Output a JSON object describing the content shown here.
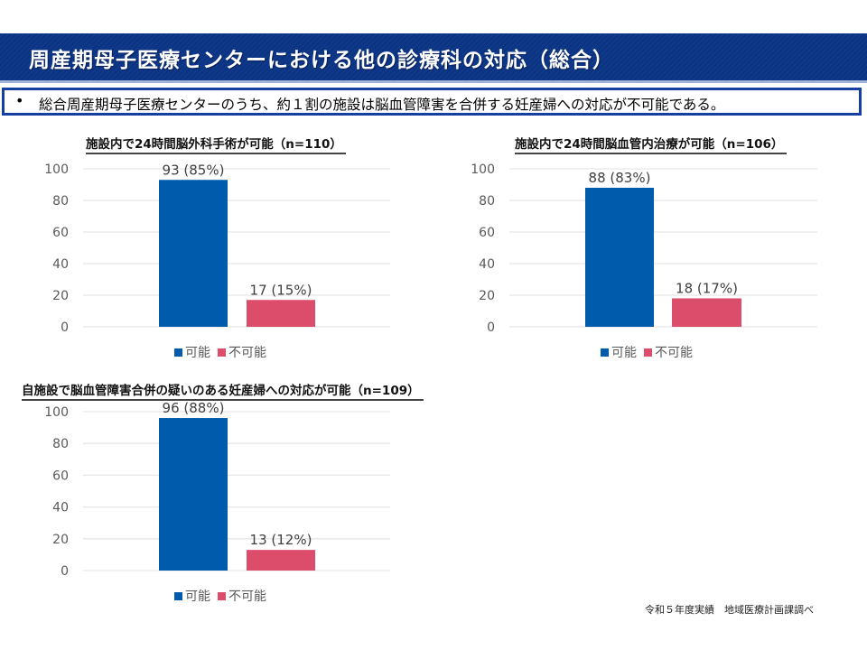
{
  "header": {
    "title": "周産期母子医療センターにおける他の診療科の対応（総合）"
  },
  "summary": {
    "bullet": "•",
    "text": "総合周産期母子医療センターのうち、約１割の施設は脳血管障害を合併する妊産婦への対応が不可能である。"
  },
  "footer": {
    "source": "令和５年度実績　地域医療計画課調べ"
  },
  "colors": {
    "possible": "#005bac",
    "impossible": "#dc4d6b",
    "grid": "#e6e6e6",
    "axis_text": "#595959",
    "header_bg": "#0a3382"
  },
  "chart_data": [
    {
      "type": "bar",
      "title": "施設内で24時間脳外科手術が可能（n=110）",
      "categories": [
        "可能",
        "不可能"
      ],
      "values": [
        93,
        17
      ],
      "data_labels": [
        "93 (85%)",
        "17 (15%)"
      ],
      "ylim": [
        0,
        100
      ],
      "yticks": [
        "0",
        "20",
        "40",
        "60",
        "80",
        "100"
      ],
      "legend": [
        "可能",
        "不可能"
      ],
      "legend_position": "bottom",
      "grid": true
    },
    {
      "type": "bar",
      "title": "施設内で24時間脳血管内治療が可能（n=106）",
      "categories": [
        "可能",
        "不可能"
      ],
      "values": [
        88,
        18
      ],
      "data_labels": [
        "88 (83%)",
        "18 (17%)"
      ],
      "ylim": [
        0,
        100
      ],
      "yticks": [
        "0",
        "20",
        "40",
        "60",
        "80",
        "100"
      ],
      "legend": [
        "可能",
        "不可能"
      ],
      "legend_position": "bottom",
      "grid": true
    },
    {
      "type": "bar",
      "title": "自施設で脳血管障害合併の疑いのある妊産婦への対応が可能（n=109）",
      "categories": [
        "可能",
        "不可能"
      ],
      "values": [
        96,
        13
      ],
      "data_labels": [
        "96 (88%)",
        "13 (12%)"
      ],
      "ylim": [
        0,
        100
      ],
      "yticks": [
        "0",
        "20",
        "40",
        "60",
        "80",
        "100"
      ],
      "legend": [
        "可能",
        "不可能"
      ],
      "legend_position": "bottom",
      "grid": true
    }
  ]
}
